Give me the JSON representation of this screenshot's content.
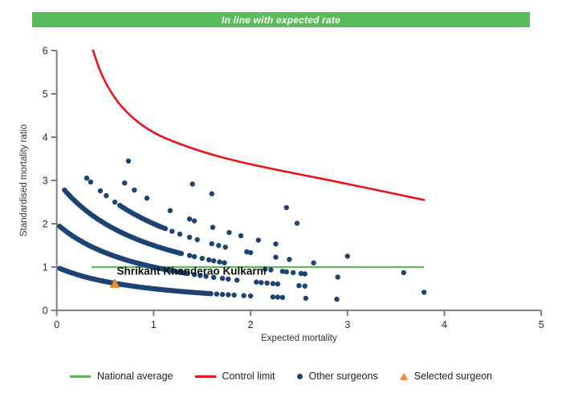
{
  "banner": {
    "text": "In line with expected rate",
    "bg_color": "#5ABC5A",
    "text_color": "#ffffff"
  },
  "chart_data": {
    "type": "scatter",
    "title": "",
    "xlabel": "Expected mortality",
    "ylabel": "Standardised mortality ratio",
    "xlim": [
      0,
      5
    ],
    "ylim": [
      0,
      6
    ],
    "x_ticks": [
      0,
      1,
      2,
      3,
      4,
      5
    ],
    "y_ticks": [
      0,
      1,
      2,
      3,
      4,
      5,
      6
    ],
    "grid": false,
    "legend_position": "bottom",
    "axis_color": "#7f7f7f",
    "tick_label_color": "#2b2b2b",
    "series": {
      "national_average": {
        "label": "National average",
        "color": "#5CB85C",
        "y": 1,
        "x_start": 0.36,
        "x_end": 3.79
      },
      "control_limit": {
        "label": "Control limit",
        "color": "#E8131B",
        "points": [
          [
            0.375,
            6.0
          ],
          [
            0.45,
            5.52
          ],
          [
            0.55,
            5.08
          ],
          [
            0.68,
            4.68
          ],
          [
            0.85,
            4.33
          ],
          [
            1.05,
            4.05
          ],
          [
            1.3,
            3.82
          ],
          [
            1.6,
            3.6
          ],
          [
            1.95,
            3.4
          ],
          [
            2.35,
            3.21
          ],
          [
            2.8,
            3.01
          ],
          [
            3.3,
            2.78
          ],
          [
            3.79,
            2.55
          ]
        ]
      },
      "other_surgeons": {
        "label": "Other surgeons",
        "color": "#1C4374",
        "marker": "circle",
        "band_formula": "smr = k / (1 + expected)",
        "dense_bands": [
          {
            "k": 1,
            "x_start": 0.03,
            "x_end": 1.6,
            "step": 0.015
          },
          {
            "k": 2,
            "x_start": 0.03,
            "x_end": 1.36,
            "step": 0.015
          },
          {
            "k": 3,
            "x_start": 0.08,
            "x_end": 1.3,
            "step": 0.018
          },
          {
            "k": 4,
            "x_start": 0.65,
            "x_end": 1.1,
            "step": 0.018
          }
        ],
        "points": [
          [
            1.65,
            0.377
          ],
          [
            1.71,
            0.369
          ],
          [
            1.77,
            0.361
          ],
          [
            1.83,
            0.353
          ],
          [
            1.93,
            0.341
          ],
          [
            2.0,
            0.333
          ],
          [
            2.23,
            0.31
          ],
          [
            2.28,
            0.305
          ],
          [
            2.33,
            0.3
          ],
          [
            2.57,
            0.28
          ],
          [
            2.89,
            0.257
          ],
          [
            1.42,
            0.826
          ],
          [
            1.48,
            0.806
          ],
          [
            1.54,
            0.787
          ],
          [
            1.62,
            0.763
          ],
          [
            1.71,
            0.738
          ],
          [
            1.77,
            0.722
          ],
          [
            1.86,
            0.699
          ],
          [
            2.06,
            0.654
          ],
          [
            2.11,
            0.643
          ],
          [
            2.17,
            0.631
          ],
          [
            2.23,
            0.619
          ],
          [
            2.28,
            0.61
          ],
          [
            2.5,
            0.571
          ],
          [
            2.56,
            0.562
          ],
          [
            3.79,
            0.418
          ],
          [
            1.37,
            1.266
          ],
          [
            1.42,
            1.24
          ],
          [
            1.5,
            1.2
          ],
          [
            1.57,
            1.167
          ],
          [
            1.62,
            1.145
          ],
          [
            1.68,
            1.119
          ],
          [
            1.73,
            1.099
          ],
          [
            2.15,
            0.952
          ],
          [
            2.21,
            0.935
          ],
          [
            2.33,
            0.901
          ],
          [
            2.37,
            0.89
          ],
          [
            2.44,
            0.872
          ],
          [
            2.52,
            0.852
          ],
          [
            2.56,
            0.843
          ],
          [
            2.9,
            0.769
          ],
          [
            0.31,
            3.053
          ],
          [
            0.35,
            2.963
          ],
          [
            0.45,
            2.759
          ],
          [
            0.51,
            2.649
          ],
          [
            0.6,
            2.5
          ],
          [
            1.12,
            1.887
          ],
          [
            1.19,
            1.826
          ],
          [
            1.27,
            1.762
          ],
          [
            1.37,
            1.688
          ],
          [
            1.45,
            1.633
          ],
          [
            1.6,
            1.538
          ],
          [
            1.67,
            1.498
          ],
          [
            1.74,
            1.46
          ],
          [
            1.96,
            1.351
          ],
          [
            2.0,
            1.333
          ],
          [
            2.26,
            1.227
          ],
          [
            2.4,
            1.176
          ],
          [
            2.65,
            1.096
          ],
          [
            3.58,
            0.873
          ],
          [
            0.7,
            2.941
          ],
          [
            0.8,
            2.778
          ],
          [
            0.93,
            2.591
          ],
          [
            1.17,
            2.304
          ],
          [
            1.37,
            2.11
          ],
          [
            1.42,
            2.066
          ],
          [
            1.61,
            1.916
          ],
          [
            1.78,
            1.799
          ],
          [
            1.9,
            1.724
          ],
          [
            2.08,
            1.623
          ],
          [
            2.26,
            1.534
          ],
          [
            3.0,
            1.25
          ],
          [
            0.74,
            3.448
          ],
          [
            1.4,
            2.917
          ],
          [
            1.6,
            2.692
          ],
          [
            2.48,
            2.011
          ],
          [
            2.37,
            2.374
          ]
        ]
      },
      "selected_surgeon": {
        "label": "Selected surgeon",
        "name": "Shrikant Khanderao Kulkarni",
        "color": "#F68B1F",
        "marker": "triangle",
        "x": 0.6,
        "y": 0.615
      }
    }
  },
  "legend": {
    "items": [
      {
        "label": "National average",
        "swatch": "line",
        "color": "#5CB85C"
      },
      {
        "label": "Control limit",
        "swatch": "line",
        "color": "#E8131B"
      },
      {
        "label": "Other surgeons",
        "swatch": "dot",
        "color": "#1C4374"
      },
      {
        "label": "Selected surgeon",
        "swatch": "triangle",
        "color": "#F68B1F"
      }
    ]
  }
}
